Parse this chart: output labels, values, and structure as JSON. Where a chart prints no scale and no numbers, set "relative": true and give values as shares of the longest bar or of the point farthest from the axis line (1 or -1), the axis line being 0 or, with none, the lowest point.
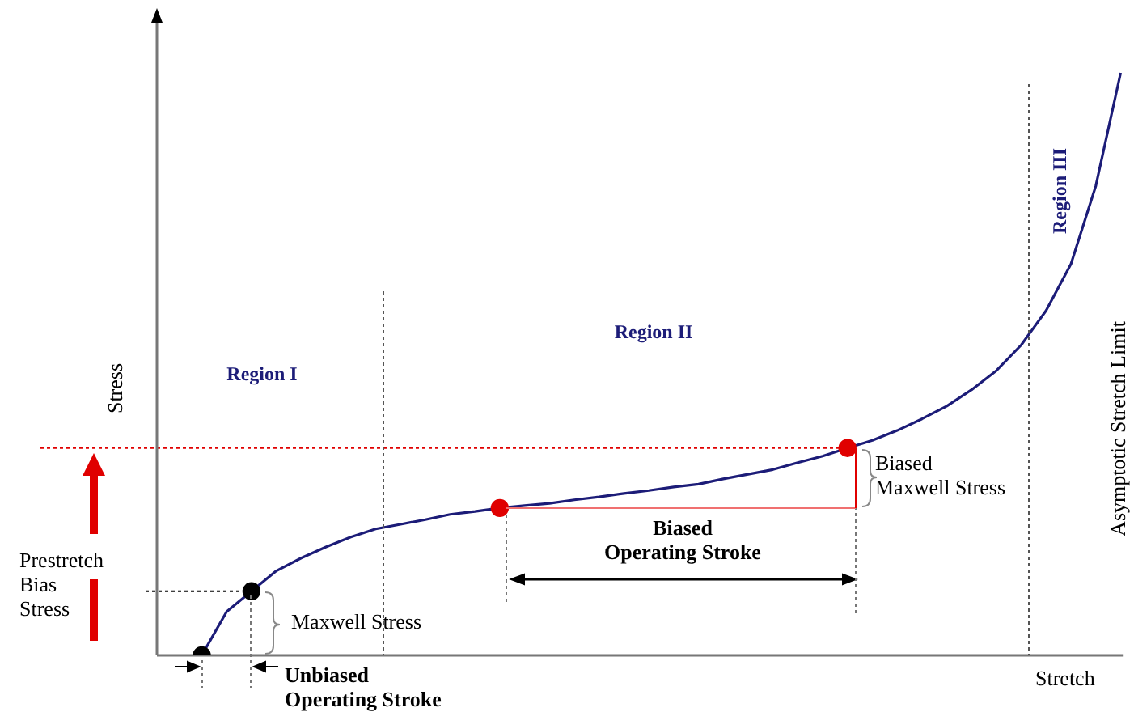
{
  "chart_data": {
    "type": "line",
    "relative": true,
    "xlabel": "Stretch",
    "ylabel": "Stress",
    "categories": [
      null,
      null,
      null,
      null,
      null,
      null,
      null,
      null,
      null,
      null,
      null,
      null,
      null,
      null,
      null,
      null,
      null,
      null,
      null,
      null,
      null,
      null,
      null,
      null,
      null,
      null,
      null,
      null,
      null,
      null,
      null,
      null,
      null,
      null,
      null,
      null,
      null,
      null
    ],
    "series": [
      {
        "type": "line",
        "color": "#1c1c78",
        "values": [
          0,
          0.075,
          0.11,
          0.145,
          0.167,
          0.186,
          0.203,
          0.217,
          0.225,
          0.233,
          0.242,
          0.247,
          0.253,
          0.257,
          0.261,
          0.267,
          0.272,
          0.278,
          0.283,
          0.289,
          0.294,
          0.303,
          0.311,
          0.319,
          0.331,
          0.342,
          0.356,
          0.369,
          0.386,
          0.406,
          0.428,
          0.456,
          0.489,
          0.533,
          0.592,
          0.672,
          0.806,
          1
        ],
        "colors": [
          "#000000",
          null,
          "#000000",
          null,
          null,
          null,
          null,
          null,
          null,
          null,
          null,
          null,
          "#e00000",
          null,
          null,
          null,
          null,
          null,
          null,
          null,
          null,
          null,
          null,
          null,
          null,
          null,
          "#e00000",
          null,
          null,
          null,
          null,
          null,
          null,
          null,
          null,
          null,
          null,
          null
        ]
      }
    ],
    "line_style": "solid",
    "legend": false,
    "ref_lines": [
      {
        "axis": "y",
        "value": 0.356,
        "color": "#e00000",
        "line_style": "dotted"
      },
      {
        "axis": "y",
        "value": 0.11,
        "color": "#000000",
        "line_style": "dotted"
      }
    ],
    "annotations": [
      "Region I",
      "Region II",
      "Region III",
      "Asymptotic Stretch Limit",
      "Prestretch\nBias\nStress",
      "Maxwell Stress",
      "Biased\nMaxwell Stress",
      "Biased\nOperating Stroke",
      "Unbiased\nOperating Stroke"
    ]
  }
}
